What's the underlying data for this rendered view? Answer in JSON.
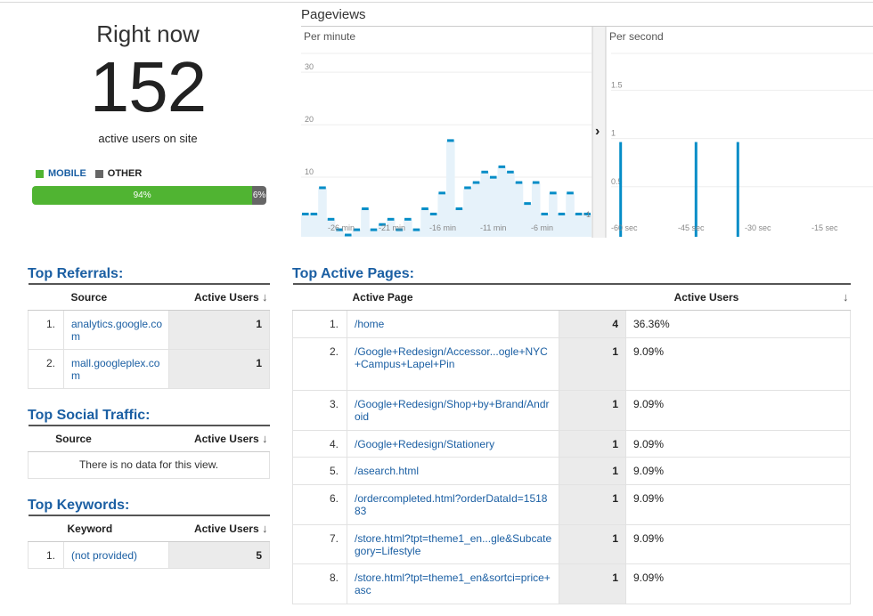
{
  "right_now": {
    "title": "Right now",
    "count": "152",
    "subtitle": "active users on site",
    "legend": [
      {
        "label": "MOBILE",
        "color": "#50b432"
      },
      {
        "label": "OTHER",
        "color": "#666666"
      }
    ],
    "mobile_pct": 94,
    "mobile_label": "94%",
    "other_label": "6%"
  },
  "pageviews": {
    "title": "Pageviews",
    "per_minute_label": "Per minute",
    "per_second_label": "Per second",
    "collapse_icon": "chevron-right-icon"
  },
  "chart_data": [
    {
      "type": "bar",
      "title": "Per minute",
      "ylim": [
        0,
        38
      ],
      "yticks": [
        10,
        20,
        30
      ],
      "xticks": [
        "-26 min",
        "-21 min",
        "-16 min",
        "-11 min",
        "-6 min"
      ],
      "values": [
        4,
        4,
        9,
        3,
        1,
        0,
        1,
        5,
        1,
        2,
        3,
        1,
        3,
        1,
        5,
        4,
        8,
        18,
        5,
        9,
        10,
        12,
        11,
        13,
        12,
        10,
        6,
        10,
        4,
        8,
        4,
        8,
        4,
        4
      ],
      "color": "#058dc7"
    },
    {
      "type": "bar",
      "title": "Per second",
      "ylim": [
        0,
        1.9
      ],
      "yticks": [
        0.5,
        1,
        1.5
      ],
      "xticks": [
        "-60 sec",
        "-45 sec",
        "-30 sec",
        "-15 sec"
      ],
      "spikes": [
        {
          "x": -59,
          "y": 1
        },
        {
          "x": -41,
          "y": 1
        },
        {
          "x": -31,
          "y": 1
        }
      ],
      "color": "#058dc7"
    }
  ],
  "top_referrals": {
    "title": "Top Referrals:",
    "col_source": "Source",
    "col_users": "Active Users",
    "rows": [
      {
        "n": "1.",
        "source": "analytics.google.com",
        "users": "1"
      },
      {
        "n": "2.",
        "source": "mall.googleplex.com",
        "users": "1"
      }
    ]
  },
  "top_social": {
    "title": "Top Social Traffic:",
    "col_source": "Source",
    "col_users": "Active Users",
    "empty": "There is no data for this view."
  },
  "top_keywords": {
    "title": "Top Keywords:",
    "col_keyword": "Keyword",
    "col_users": "Active Users",
    "rows": [
      {
        "n": "1.",
        "keyword": "(not provided)",
        "users": "5"
      }
    ]
  },
  "top_pages": {
    "title": "Top Active Pages:",
    "col_page": "Active Page",
    "col_users": "Active Users",
    "rows": [
      {
        "n": "1.",
        "page": "/home",
        "users": "4",
        "pct": "36.36%"
      },
      {
        "n": "2.",
        "page": "/Google+Redesign/Accessor...ogle+NYC+Campus+Lapel+Pin",
        "users": "1",
        "pct": "9.09%"
      },
      {
        "n": "3.",
        "page": "/Google+Redesign/Shop+by+Brand/Android",
        "users": "1",
        "pct": "9.09%"
      },
      {
        "n": "4.",
        "page": "/Google+Redesign/Stationery",
        "users": "1",
        "pct": "9.09%"
      },
      {
        "n": "5.",
        "page": "/asearch.html",
        "users": "1",
        "pct": "9.09%"
      },
      {
        "n": "6.",
        "page": "/ordercompleted.html?orderDataId=151883",
        "users": "1",
        "pct": "9.09%"
      },
      {
        "n": "7.",
        "page": "/store.html?tpt=theme1_en...gle&Subcategory=Lifestyle",
        "users": "1",
        "pct": "9.09%"
      },
      {
        "n": "8.",
        "page": "/store.html?tpt=theme1_en&sortci=price+asc",
        "users": "1",
        "pct": "9.09%"
      }
    ]
  }
}
